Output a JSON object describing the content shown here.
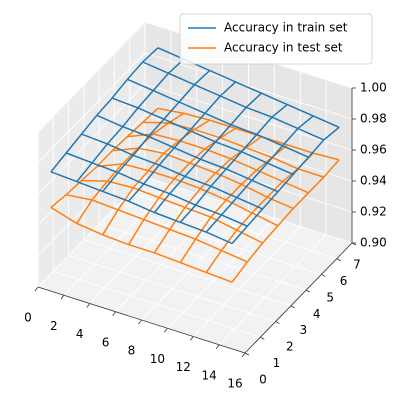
{
  "chart_data": {
    "type": "wireframe3d",
    "x": [
      1,
      3,
      5,
      7,
      9,
      11,
      13,
      15
    ],
    "y": [
      0,
      1,
      2,
      3,
      4,
      5,
      6,
      7
    ],
    "xlim": [
      0,
      16
    ],
    "ylim": [
      0,
      7
    ],
    "zlim": [
      0.9,
      1.0
    ],
    "xticks": [
      0,
      2,
      4,
      6,
      8,
      10,
      12,
      14,
      16
    ],
    "yticks": [
      0,
      1,
      2,
      3,
      4,
      5,
      6,
      7
    ],
    "zticks": [
      {
        "value": 0.9,
        "label": "0.90"
      },
      0.92,
      0.94,
      0.96,
      0.98,
      {
        "value": 1.0,
        "label": "1.00"
      }
    ],
    "grid": true,
    "legend": "upper right",
    "series": [
      {
        "name": "Accuracy in train set",
        "color": "#1f77b4",
        "values": [
          [
            0.977,
            0.976,
            0.975,
            0.974,
            0.972,
            0.971,
            0.97,
            0.968
          ],
          [
            0.979,
            0.978,
            0.977,
            0.975,
            0.974,
            0.972,
            0.971,
            0.969
          ],
          [
            0.981,
            0.98,
            0.978,
            0.977,
            0.975,
            0.974,
            0.972,
            0.97
          ],
          [
            0.983,
            0.981,
            0.98,
            0.978,
            0.976,
            0.975,
            0.973,
            0.971
          ],
          [
            0.984,
            0.983,
            0.981,
            0.979,
            0.977,
            0.976,
            0.974,
            0.972
          ],
          [
            0.986,
            0.984,
            0.982,
            0.98,
            0.978,
            0.977,
            0.975,
            0.973
          ],
          [
            0.987,
            0.985,
            0.983,
            0.981,
            0.979,
            0.978,
            0.976,
            0.974
          ],
          [
            0.986,
            0.984,
            0.982,
            0.98,
            0.978,
            0.976,
            0.974,
            0.972
          ]
        ]
      },
      {
        "name": "Accuracy in test set",
        "color": "#ff7f0e",
        "values": [
          [
            0.954,
            0.949,
            0.947,
            0.946,
            0.946,
            0.945,
            0.944,
            0.943
          ],
          [
            0.952,
            0.954,
            0.953,
            0.952,
            0.951,
            0.95,
            0.948,
            0.946
          ],
          [
            0.951,
            0.956,
            0.957,
            0.956,
            0.955,
            0.954,
            0.951,
            0.948
          ],
          [
            0.95,
            0.957,
            0.958,
            0.958,
            0.957,
            0.955,
            0.952,
            0.949
          ],
          [
            0.95,
            0.957,
            0.959,
            0.958,
            0.957,
            0.955,
            0.952,
            0.95
          ],
          [
            0.949,
            0.956,
            0.957,
            0.957,
            0.956,
            0.954,
            0.952,
            0.95
          ],
          [
            0.948,
            0.953,
            0.954,
            0.954,
            0.953,
            0.952,
            0.95,
            0.95
          ],
          [
            0.947,
            0.949,
            0.95,
            0.95,
            0.95,
            0.95,
            0.95,
            0.951
          ]
        ]
      }
    ]
  }
}
